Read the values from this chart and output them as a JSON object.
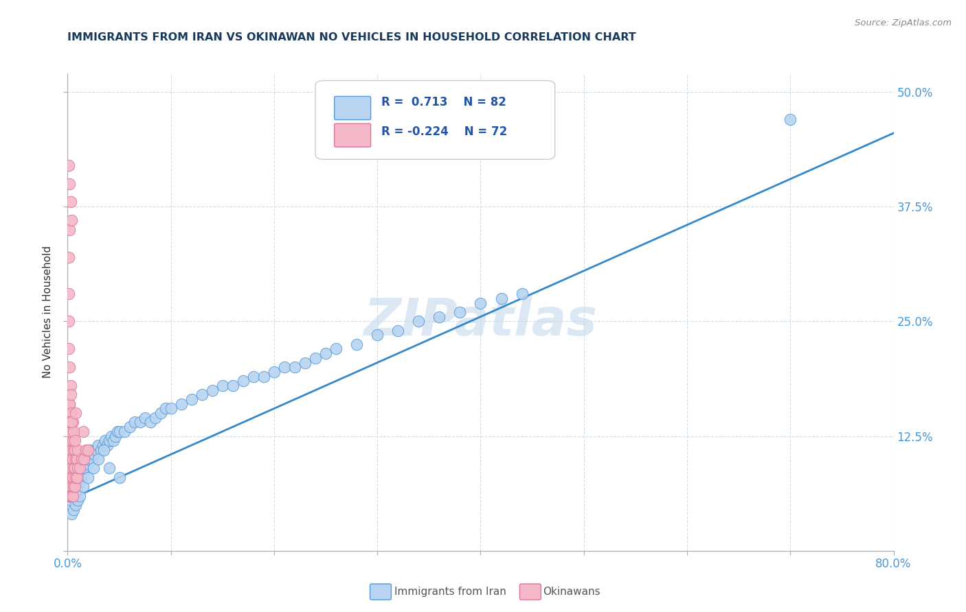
{
  "title": "IMMIGRANTS FROM IRAN VS OKINAWAN NO VEHICLES IN HOUSEHOLD CORRELATION CHART",
  "source": "Source: ZipAtlas.com",
  "ylabel": "No Vehicles in Household",
  "y_ticks": [
    0.0,
    0.125,
    0.25,
    0.375,
    0.5
  ],
  "y_tick_labels": [
    "",
    "12.5%",
    "25.0%",
    "37.5%",
    "50.0%"
  ],
  "x_ticks": [
    0.0,
    0.1,
    0.2,
    0.3,
    0.4,
    0.5,
    0.6,
    0.7,
    0.8
  ],
  "watermark": "ZIPatlas",
  "blue_color": "#b8d4f0",
  "pink_color": "#f5b8c8",
  "blue_edge_color": "#5599dd",
  "pink_edge_color": "#dd7799",
  "blue_line_color": "#3388cc",
  "title_color": "#1a3a5c",
  "tick_label_color": "#4499dd",
  "source_color": "#888888",
  "legend_text_color": "#2255aa",
  "grid_color": "#d0dde8",
  "blue_scatter_x": [
    0.002,
    0.003,
    0.004,
    0.005,
    0.006,
    0.007,
    0.008,
    0.009,
    0.01,
    0.011,
    0.012,
    0.013,
    0.014,
    0.015,
    0.016,
    0.017,
    0.018,
    0.019,
    0.02,
    0.021,
    0.022,
    0.024,
    0.026,
    0.028,
    0.03,
    0.032,
    0.034,
    0.036,
    0.038,
    0.04,
    0.042,
    0.044,
    0.046,
    0.048,
    0.05,
    0.055,
    0.06,
    0.065,
    0.07,
    0.075,
    0.08,
    0.085,
    0.09,
    0.095,
    0.1,
    0.11,
    0.12,
    0.13,
    0.14,
    0.15,
    0.16,
    0.17,
    0.18,
    0.19,
    0.2,
    0.21,
    0.22,
    0.23,
    0.24,
    0.25,
    0.26,
    0.28,
    0.3,
    0.32,
    0.34,
    0.36,
    0.38,
    0.4,
    0.42,
    0.44,
    0.004,
    0.006,
    0.008,
    0.01,
    0.012,
    0.015,
    0.02,
    0.025,
    0.03,
    0.035,
    0.04,
    0.05,
    0.7
  ],
  "blue_scatter_y": [
    0.06,
    0.055,
    0.065,
    0.07,
    0.06,
    0.065,
    0.075,
    0.07,
    0.08,
    0.075,
    0.085,
    0.08,
    0.09,
    0.085,
    0.09,
    0.095,
    0.1,
    0.095,
    0.1,
    0.105,
    0.11,
    0.1,
    0.105,
    0.11,
    0.115,
    0.11,
    0.115,
    0.12,
    0.115,
    0.12,
    0.125,
    0.12,
    0.125,
    0.13,
    0.13,
    0.13,
    0.135,
    0.14,
    0.14,
    0.145,
    0.14,
    0.145,
    0.15,
    0.155,
    0.155,
    0.16,
    0.165,
    0.17,
    0.175,
    0.18,
    0.18,
    0.185,
    0.19,
    0.19,
    0.195,
    0.2,
    0.2,
    0.205,
    0.21,
    0.215,
    0.22,
    0.225,
    0.235,
    0.24,
    0.25,
    0.255,
    0.26,
    0.27,
    0.275,
    0.28,
    0.04,
    0.045,
    0.05,
    0.055,
    0.06,
    0.07,
    0.08,
    0.09,
    0.1,
    0.11,
    0.09,
    0.08,
    0.47
  ],
  "pink_scatter_x": [
    0.001,
    0.001,
    0.001,
    0.001,
    0.001,
    0.001,
    0.001,
    0.001,
    0.001,
    0.001,
    0.002,
    0.002,
    0.002,
    0.002,
    0.002,
    0.002,
    0.002,
    0.002,
    0.003,
    0.003,
    0.003,
    0.003,
    0.003,
    0.003,
    0.004,
    0.004,
    0.004,
    0.004,
    0.004,
    0.005,
    0.005,
    0.005,
    0.005,
    0.006,
    0.006,
    0.006,
    0.007,
    0.007,
    0.007,
    0.008,
    0.008,
    0.009,
    0.009,
    0.01,
    0.01,
    0.012,
    0.014,
    0.016,
    0.018,
    0.02,
    0.001,
    0.002,
    0.003,
    0.002,
    0.003,
    0.004,
    0.001,
    0.001,
    0.015,
    0.005,
    0.003,
    0.002,
    0.006,
    0.004,
    0.001,
    0.007,
    0.002,
    0.003,
    0.004,
    0.002,
    0.001,
    0.008
  ],
  "pink_scatter_y": [
    0.06,
    0.07,
    0.08,
    0.09,
    0.1,
    0.11,
    0.12,
    0.13,
    0.14,
    0.15,
    0.06,
    0.07,
    0.08,
    0.09,
    0.1,
    0.12,
    0.14,
    0.16,
    0.06,
    0.07,
    0.08,
    0.1,
    0.12,
    0.15,
    0.06,
    0.07,
    0.09,
    0.11,
    0.13,
    0.06,
    0.08,
    0.1,
    0.12,
    0.07,
    0.09,
    0.11,
    0.07,
    0.09,
    0.11,
    0.08,
    0.1,
    0.08,
    0.1,
    0.09,
    0.11,
    0.09,
    0.1,
    0.1,
    0.11,
    0.11,
    0.22,
    0.2,
    0.18,
    0.16,
    0.17,
    0.15,
    0.25,
    0.28,
    0.13,
    0.14,
    0.13,
    0.14,
    0.13,
    0.14,
    0.32,
    0.12,
    0.35,
    0.38,
    0.36,
    0.4,
    0.42,
    0.15
  ],
  "trend_x": [
    0.0,
    0.8
  ],
  "trend_y": [
    0.055,
    0.455
  ]
}
